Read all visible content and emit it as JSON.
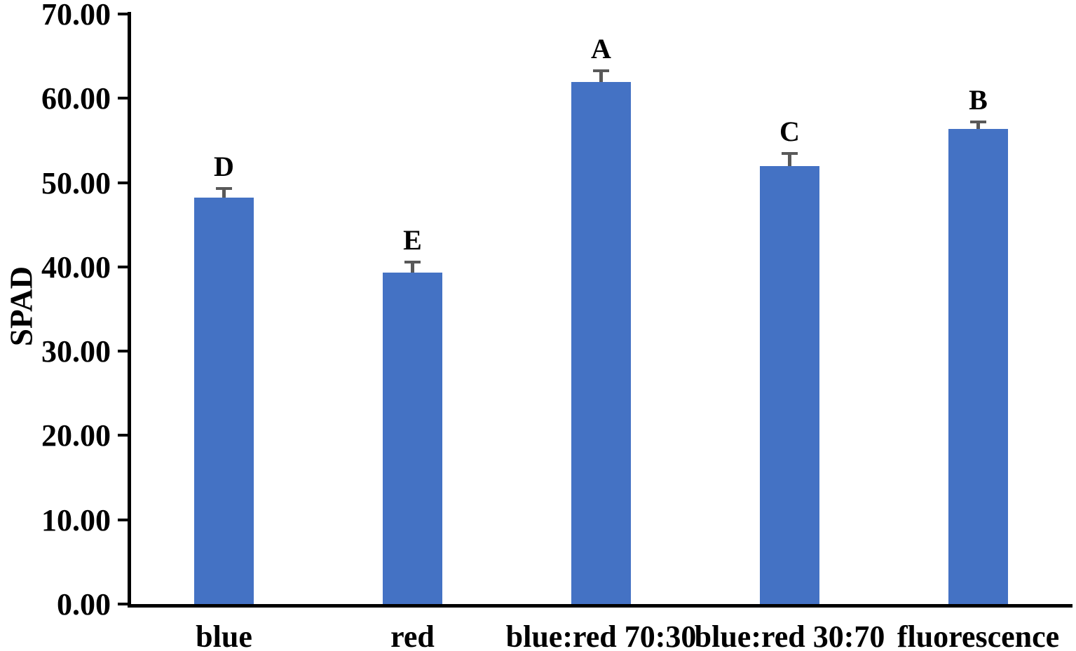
{
  "chart_data": {
    "type": "bar",
    "title": "",
    "xlabel": "",
    "ylabel": "SPAD",
    "ylim": [
      0,
      70
    ],
    "ytick_interval": 10,
    "ytick_labels": [
      "0.00",
      "10.00",
      "20.00",
      "30.00",
      "40.00",
      "50.00",
      "60.00",
      "70.00"
    ],
    "categories": [
      "blue",
      "red",
      "blue:red 70:30",
      "blue:red 30:70",
      "fluorescence"
    ],
    "values": [
      48.2,
      39.3,
      61.9,
      52.0,
      56.4
    ],
    "error_bars": [
      1.3,
      1.4,
      1.5,
      1.6,
      1.0
    ],
    "significance_letters": [
      "D",
      "E",
      "A",
      "C",
      "B"
    ],
    "grid": false,
    "legend": false,
    "colors": {
      "bar_fill": "#4472C4",
      "error_bar": "#595959",
      "axis": "#000000",
      "text": "#000000",
      "background": "#FFFFFF"
    }
  }
}
